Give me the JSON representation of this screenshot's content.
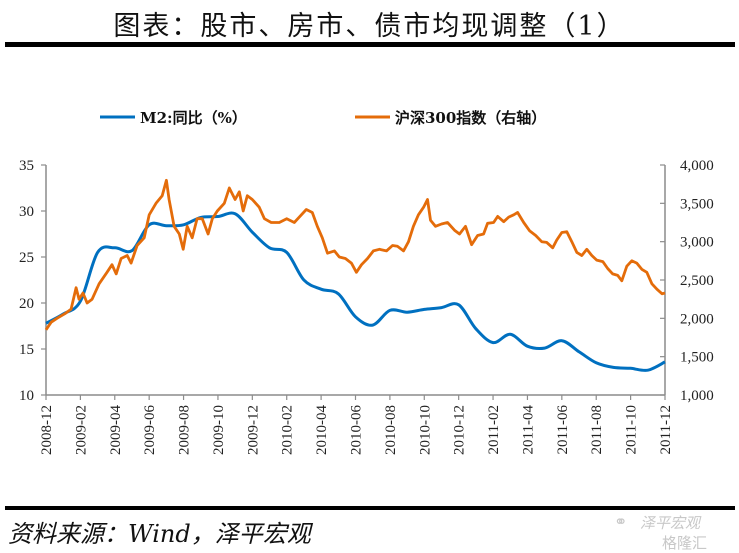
{
  "header": {
    "title": "图表：股市、房市、债市均现调整（1）"
  },
  "footer": {
    "source": "资料来源：Wind，泽平宏观",
    "watermark_line1": "泽平宏观",
    "watermark_line2": "格隆汇",
    "watermark_icon": "wechat-icon"
  },
  "colors": {
    "m2": "#0070C0",
    "csi300": "#E46C0A",
    "axis": "#8c8c8c"
  },
  "chart_data": {
    "type": "line",
    "title": "",
    "x_tick_labels": [
      "2008-12",
      "2009-02",
      "2009-04",
      "2009-06",
      "2009-08",
      "2009-10",
      "2009-12",
      "2010-02",
      "2010-04",
      "2010-06",
      "2010-08",
      "2010-10",
      "2010-12",
      "2011-02",
      "2011-04",
      "2011-06",
      "2011-08",
      "2011-10",
      "2011-12"
    ],
    "x_range_months": [
      0,
      36
    ],
    "y_left": {
      "label": "",
      "ylim": [
        10,
        35
      ],
      "ticks": [
        "10",
        "15",
        "20",
        "25",
        "30",
        "35"
      ]
    },
    "y_right": {
      "label": "",
      "ylim": [
        1000,
        4000
      ],
      "ticks": [
        "1,000",
        "1,500",
        "2,000",
        "2,500",
        "3,000",
        "3,500",
        "4,000"
      ]
    },
    "legend": {
      "position": "top",
      "items": [
        "M2:同比（%）",
        "沪深300指数（右轴）"
      ]
    },
    "grid": false,
    "series": [
      {
        "name": "M2:同比（%）",
        "axis": "left",
        "x_months": [
          0,
          1,
          2,
          3,
          4,
          5,
          6,
          7,
          8,
          9,
          10,
          11,
          12,
          13,
          14,
          15,
          16,
          17,
          18,
          19,
          20,
          21,
          22,
          23,
          24,
          25,
          26,
          27,
          28,
          29,
          30,
          31,
          32,
          33,
          34,
          35,
          36
        ],
        "values": [
          17.8,
          18.8,
          20.2,
          25.5,
          26.0,
          25.7,
          28.5,
          28.4,
          28.5,
          29.3,
          29.4,
          29.7,
          27.7,
          26.0,
          25.5,
          22.5,
          21.5,
          21.0,
          18.5,
          17.6,
          19.2,
          19.0,
          19.3,
          19.5,
          19.8,
          17.2,
          15.7,
          16.6,
          15.3,
          15.1,
          15.9,
          14.7,
          13.5,
          13.0,
          12.9,
          12.7,
          13.6
        ]
      },
      {
        "name": "沪深300指数（右轴）",
        "axis": "right",
        "x_months": [
          0,
          0.3,
          0.64,
          1.1,
          1.46,
          1.75,
          1.92,
          2.15,
          2.39,
          2.68,
          3.09,
          3.55,
          3.84,
          4.08,
          4.37,
          4.72,
          4.95,
          5.3,
          5.71,
          6.0,
          6.4,
          6.76,
          7.0,
          7.16,
          7.45,
          7.75,
          7.98,
          8.21,
          8.5,
          8.79,
          9.09,
          9.43,
          9.67,
          9.96,
          10.37,
          10.66,
          11.0,
          11.24,
          11.47,
          11.71,
          12.0,
          12.4,
          12.7,
          13.1,
          13.57,
          14.0,
          14.44,
          14.73,
          15.14,
          15.49,
          15.78,
          16.07,
          16.37,
          16.77,
          17.06,
          17.41,
          17.76,
          18.05,
          18.35,
          18.7,
          19.04,
          19.39,
          19.8,
          20.15,
          20.44,
          20.79,
          21.08,
          21.37,
          21.66,
          21.96,
          22.19,
          22.36,
          22.65,
          23.0,
          23.35,
          23.76,
          24.05,
          24.4,
          24.75,
          25.1,
          25.45,
          25.68,
          26.03,
          26.27,
          26.62,
          26.91,
          27.2,
          27.43,
          27.78,
          28.13,
          28.48,
          28.83,
          29.12,
          29.47,
          29.7,
          30.0,
          30.29,
          30.58,
          30.87,
          31.16,
          31.45,
          31.74,
          32.03,
          32.38,
          32.67,
          32.96,
          33.25,
          33.49,
          33.78,
          34.07,
          34.36,
          34.65,
          34.94,
          35.24,
          35.53,
          35.83,
          36.0
        ],
        "values": [
          1850,
          1950,
          2000,
          2060,
          2120,
          2400,
          2250,
          2330,
          2200,
          2250,
          2450,
          2600,
          2700,
          2580,
          2780,
          2820,
          2720,
          2950,
          3050,
          3350,
          3500,
          3600,
          3800,
          3550,
          3200,
          3100,
          2900,
          3200,
          3050,
          3300,
          3300,
          3100,
          3300,
          3400,
          3500,
          3700,
          3550,
          3650,
          3400,
          3600,
          3550,
          3450,
          3300,
          3250,
          3250,
          3300,
          3250,
          3320,
          3420,
          3380,
          3200,
          3050,
          2850,
          2880,
          2800,
          2780,
          2720,
          2600,
          2700,
          2780,
          2880,
          2900,
          2880,
          2950,
          2940,
          2880,
          3000,
          3200,
          3350,
          3450,
          3550,
          3280,
          3200,
          3230,
          3250,
          3150,
          3100,
          3200,
          2960,
          3080,
          3100,
          3240,
          3250,
          3330,
          3260,
          3320,
          3350,
          3380,
          3250,
          3140,
          3080,
          3000,
          2990,
          2920,
          3020,
          3120,
          3130,
          3000,
          2860,
          2820,
          2900,
          2820,
          2760,
          2740,
          2650,
          2580,
          2560,
          2490,
          2680,
          2750,
          2720,
          2640,
          2600,
          2450,
          2380,
          2320,
          2330
        ]
      }
    ]
  }
}
